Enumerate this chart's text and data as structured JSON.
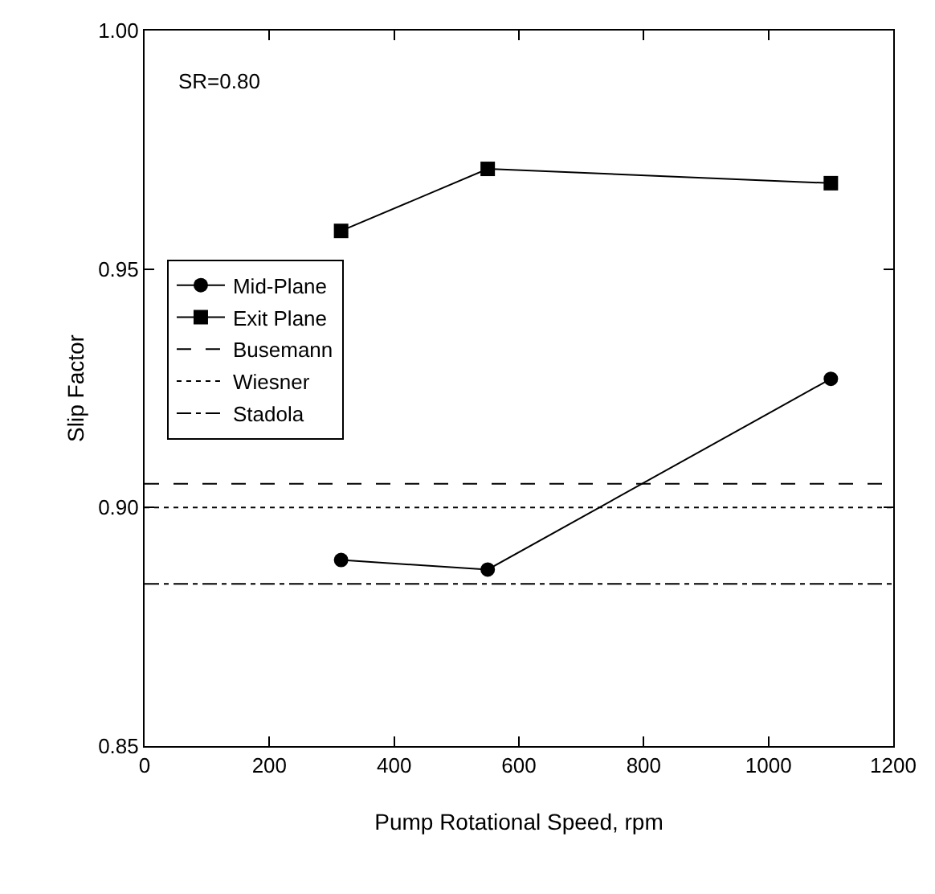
{
  "chart_data": {
    "type": "line",
    "xlabel": "Pump Rotational Speed, rpm",
    "ylabel": "Slip Factor",
    "annotations": [
      "SR=0.80"
    ],
    "x": [
      315,
      550,
      1100
    ],
    "series": [
      {
        "name": "Mid-Plane",
        "color": "#000000",
        "marker": "circle",
        "line_style": "solid",
        "values": [
          0.889,
          0.887,
          0.927
        ]
      },
      {
        "name": "Exit Plane",
        "color": "#000000",
        "marker": "square",
        "line_style": "solid",
        "values": [
          0.958,
          0.971,
          0.968
        ]
      }
    ],
    "ref_lines": [
      {
        "axis": "y",
        "value": 0.905,
        "label": "Busemann",
        "color": "#000000",
        "line_style": "dashed"
      },
      {
        "axis": "y",
        "value": 0.9,
        "label": "Wiesner",
        "color": "#000000",
        "line_style": "dotted"
      },
      {
        "axis": "y",
        "value": 0.884,
        "label": "Stadola",
        "color": "#000000",
        "line_style": "dashdot"
      }
    ],
    "xlim": [
      0,
      1200
    ],
    "xticks": [
      0,
      200,
      400,
      600,
      800,
      1000,
      1200
    ],
    "ylim": [
      0.85,
      1.0
    ],
    "yticks": [
      {
        "value": 0.85,
        "label": "0.85"
      },
      {
        "value": 0.9,
        "label": "0.90"
      },
      {
        "value": 0.95,
        "label": "0.95"
      },
      {
        "value": 1.0,
        "label": "1.00"
      }
    ],
    "grid": false,
    "legend": "left"
  }
}
